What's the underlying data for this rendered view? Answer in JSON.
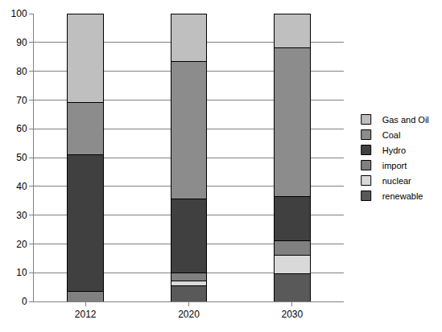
{
  "chart_data": {
    "type": "bar",
    "stacked": true,
    "categories": [
      "2012",
      "2020",
      "2030"
    ],
    "series": [
      {
        "name": "renewable",
        "color": "#595959",
        "values": [
          0,
          5.5,
          9.5
        ]
      },
      {
        "name": "nuclear",
        "color": "#d9d9d9",
        "values": [
          0,
          1.5,
          6.5
        ]
      },
      {
        "name": "import",
        "color": "#808080",
        "values": [
          3.5,
          3,
          5
        ]
      },
      {
        "name": "Hydro",
        "color": "#404040",
        "values": [
          47.5,
          25.5,
          15.5
        ]
      },
      {
        "name": "Coal",
        "color": "#8c8c8c",
        "values": [
          18,
          48,
          51.5
        ]
      },
      {
        "name": "Gas and Oil",
        "color": "#bfbfbf",
        "values": [
          31,
          16.5,
          12
        ]
      }
    ],
    "ylim": [
      0,
      100
    ],
    "yticks": [
      0,
      10,
      20,
      30,
      40,
      50,
      60,
      70,
      80,
      90,
      100
    ],
    "grid": true,
    "legend": "right"
  }
}
